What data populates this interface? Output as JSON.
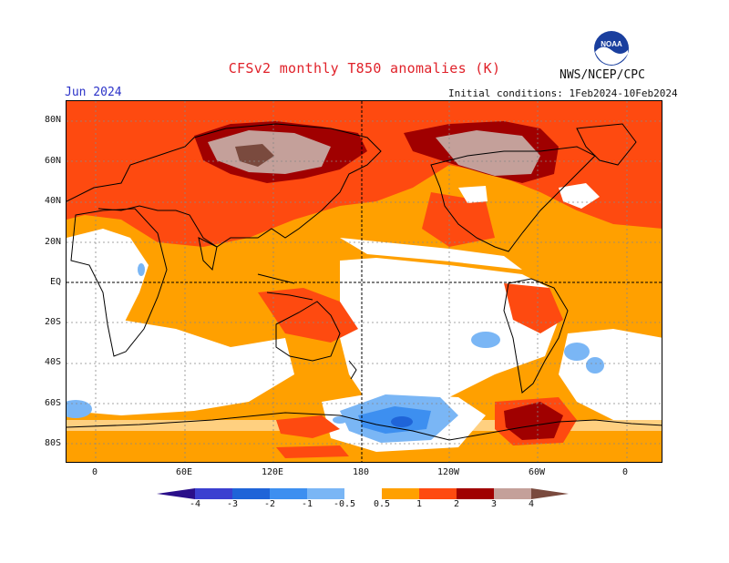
{
  "header": {
    "title": "CFSv2 monthly T850 anomalies (K)",
    "agency": "NWS/NCEP/CPC",
    "month": "Jun 2024",
    "initial_conditions": "Initial conditions: 1Feb2024-10Feb2024",
    "logo_text": "NOAA"
  },
  "axes": {
    "lat_labels": [
      "80N",
      "60N",
      "40N",
      "20N",
      "EQ",
      "20S",
      "40S",
      "60S",
      "80S"
    ],
    "lon_labels": [
      "0",
      "60E",
      "120E",
      "180",
      "120W",
      "60W",
      "0"
    ]
  },
  "colorbar": {
    "labels": [
      "-4",
      "-3",
      "-2",
      "-1",
      "-0.5",
      "0.5",
      "1",
      "2",
      "3",
      "4"
    ],
    "colors": {
      "lt_-4": "#2a0f8a",
      "-4_-3": "#3b3fd0",
      "-3_-2": "#1f64d8",
      "-2_-1": "#3d8ff0",
      "-1_-0.5": "#7ab6f5",
      "-0.5_0.5": "#ffffff",
      "0.5_1": "#ffa000",
      "1_2": "#fe4a10",
      "2_3": "#a00000",
      "3_4": "#c4a09a",
      "gt_4": "#7a4a3e"
    }
  },
  "map_colors": {
    "warm_05_1": "#ffa000",
    "warm_1_2": "#fe4a10",
    "warm_2_3": "#a00000",
    "warm_3_4": "#c4a09a",
    "warm_gt4": "#7a4a3e",
    "cool_05_1": "#7ab6f5",
    "cool_1_2": "#3d8ff0",
    "cool_2_3": "#1f64d8"
  }
}
